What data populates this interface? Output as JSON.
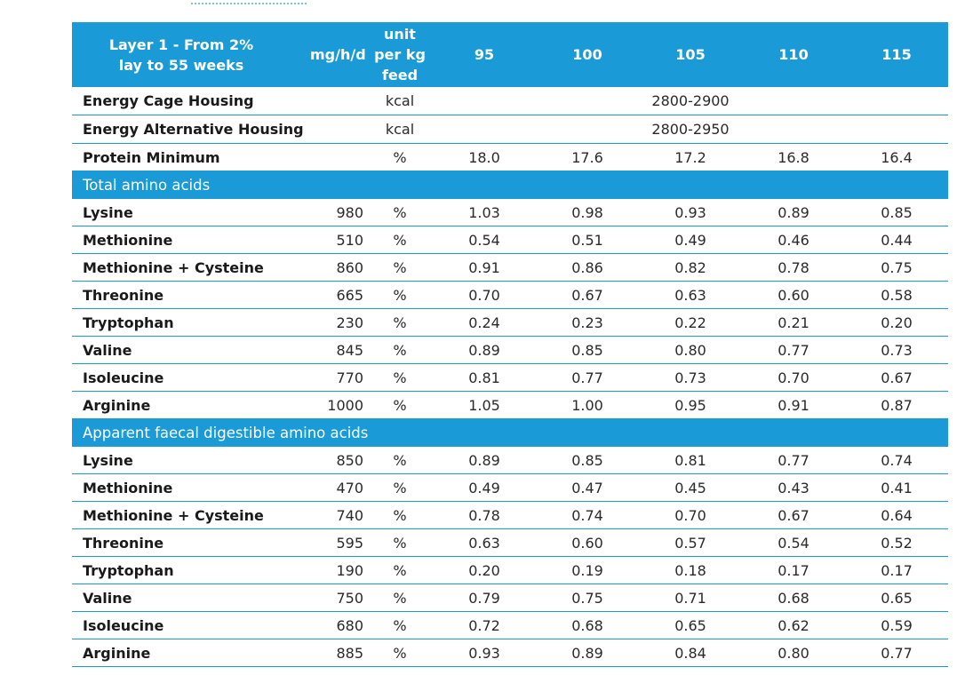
{
  "header": {
    "label": "Layer 1 - From 2% lay to 55 weeks",
    "mg_col": "mg/h/d",
    "unit_col": "unit per kg feed",
    "weights": [
      "95",
      "100",
      "105",
      "110",
      "115"
    ]
  },
  "energy": [
    {
      "label": "Energy Cage Housing",
      "unit": "kcal",
      "value": "2800-2900"
    },
    {
      "label": "Energy Alternative Housing",
      "unit": "kcal",
      "value": "2800-2950"
    }
  ],
  "protein": {
    "label": "Protein Minimum",
    "unit": "%",
    "values": [
      "18.0",
      "17.6",
      "17.2",
      "16.8",
      "16.4"
    ]
  },
  "sections": [
    {
      "title": "Total amino acids",
      "rows": [
        {
          "name": "Lysine",
          "mg": "980",
          "unit": "%",
          "values": [
            "1.03",
            "0.98",
            "0.93",
            "0.89",
            "0.85"
          ]
        },
        {
          "name": "Methionine",
          "mg": "510",
          "unit": "%",
          "values": [
            "0.54",
            "0.51",
            "0.49",
            "0.46",
            "0.44"
          ]
        },
        {
          "name": "Methionine + Cysteine",
          "mg": "860",
          "unit": "%",
          "values": [
            "0.91",
            "0.86",
            "0.82",
            "0.78",
            "0.75"
          ]
        },
        {
          "name": "Threonine",
          "mg": "665",
          "unit": "%",
          "values": [
            "0.70",
            "0.67",
            "0.63",
            "0.60",
            "0.58"
          ]
        },
        {
          "name": "Tryptophan",
          "mg": "230",
          "unit": "%",
          "values": [
            "0.24",
            "0.23",
            "0.22",
            "0.21",
            "0.20"
          ]
        },
        {
          "name": "Valine",
          "mg": "845",
          "unit": "%",
          "values": [
            "0.89",
            "0.85",
            "0.80",
            "0.77",
            "0.73"
          ]
        },
        {
          "name": "Isoleucine",
          "mg": "770",
          "unit": "%",
          "values": [
            "0.81",
            "0.77",
            "0.73",
            "0.70",
            "0.67"
          ]
        },
        {
          "name": "Arginine",
          "mg": "1000",
          "unit": "%",
          "values": [
            "1.05",
            "1.00",
            "0.95",
            "0.91",
            "0.87"
          ]
        }
      ]
    },
    {
      "title": "Apparent faecal digestible amino acids",
      "rows": [
        {
          "name": "Lysine",
          "mg": "850",
          "unit": "%",
          "values": [
            "0.89",
            "0.85",
            "0.81",
            "0.77",
            "0.74"
          ]
        },
        {
          "name": "Methionine",
          "mg": "470",
          "unit": "%",
          "values": [
            "0.49",
            "0.47",
            "0.45",
            "0.43",
            "0.41"
          ]
        },
        {
          "name": "Methionine + Cysteine",
          "mg": "740",
          "unit": "%",
          "values": [
            "0.78",
            "0.74",
            "0.70",
            "0.67",
            "0.64"
          ]
        },
        {
          "name": "Threonine",
          "mg": "595",
          "unit": "%",
          "values": [
            "0.63",
            "0.60",
            "0.57",
            "0.54",
            "0.52"
          ]
        },
        {
          "name": "Tryptophan",
          "mg": "190",
          "unit": "%",
          "values": [
            "0.20",
            "0.19",
            "0.18",
            "0.17",
            "0.17"
          ]
        },
        {
          "name": "Valine",
          "mg": "750",
          "unit": "%",
          "values": [
            "0.79",
            "0.75",
            "0.71",
            "0.68",
            "0.65"
          ]
        },
        {
          "name": "Isoleucine",
          "mg": "680",
          "unit": "%",
          "values": [
            "0.72",
            "0.68",
            "0.65",
            "0.62",
            "0.59"
          ]
        },
        {
          "name": "Arginine",
          "mg": "885",
          "unit": "%",
          "values": [
            "0.93",
            "0.89",
            "0.84",
            "0.80",
            "0.77"
          ]
        }
      ]
    }
  ],
  "colors": {
    "accent": "#1a9ad6",
    "text": "#1a1a1a",
    "background": "#ffffff"
  }
}
